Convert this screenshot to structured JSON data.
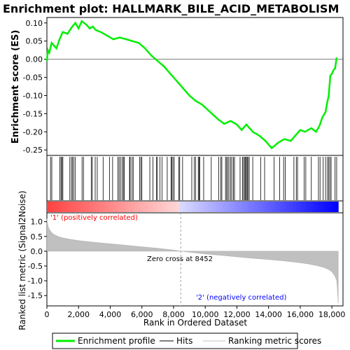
{
  "chart_data": {
    "type": "line",
    "title": "Enrichment plot: HALLMARK_BILE_ACID_METABOLISM",
    "x_axis": {
      "label": "Rank in Ordered Dataset",
      "range": [
        0,
        18700
      ],
      "ticks": [
        0,
        2000,
        4000,
        6000,
        8000,
        10000,
        12000,
        14000,
        16000,
        18000
      ],
      "tick_labels": [
        "0",
        "2,000",
        "4,000",
        "6,000",
        "8,000",
        "10,000",
        "12,000",
        "14,000",
        "16,000",
        "18,000"
      ]
    },
    "es_panel": {
      "ylabel": "Enrichment score (ES)",
      "ylim": [
        -0.265,
        0.115
      ],
      "ticks": [
        0.1,
        0.05,
        0.0,
        -0.05,
        -0.1,
        -0.15,
        -0.2,
        -0.25
      ],
      "tick_labels": [
        "0.10",
        "0.05",
        "0.00",
        "-0.05",
        "-0.10",
        "-0.15",
        "-0.20",
        "-0.25"
      ],
      "series_name": "Enrichment profile",
      "color": "#00ee00",
      "x": [
        0,
        60,
        150,
        300,
        600,
        800,
        1000,
        1300,
        1600,
        1800,
        2000,
        2200,
        2500,
        2700,
        2900,
        3100,
        3400,
        3800,
        4200,
        4600,
        5000,
        5400,
        5800,
        6200,
        6600,
        7000,
        7400,
        7800,
        8200,
        8600,
        9000,
        9400,
        9800,
        10300,
        10800,
        11200,
        11600,
        12000,
        12300,
        12600,
        13000,
        13400,
        13800,
        14200,
        14600,
        15000,
        15400,
        15700,
        16000,
        16300,
        16700,
        17000,
        17200,
        17400,
        17600,
        17700,
        17800,
        17900,
        18000,
        18100,
        18200,
        18300
      ],
      "y": [
        -0.005,
        0.025,
        0.018,
        0.045,
        0.03,
        0.055,
        0.075,
        0.07,
        0.09,
        0.1,
        0.085,
        0.105,
        0.095,
        0.085,
        0.09,
        0.08,
        0.075,
        0.065,
        0.055,
        0.06,
        0.055,
        0.05,
        0.045,
        0.03,
        0.01,
        -0.005,
        -0.02,
        -0.04,
        -0.06,
        -0.08,
        -0.1,
        -0.115,
        -0.125,
        -0.145,
        -0.165,
        -0.178,
        -0.17,
        -0.18,
        -0.195,
        -0.18,
        -0.2,
        -0.21,
        -0.225,
        -0.245,
        -0.23,
        -0.22,
        -0.225,
        -0.21,
        -0.195,
        -0.2,
        -0.19,
        -0.2,
        -0.185,
        -0.16,
        -0.145,
        -0.12,
        -0.1,
        -0.045,
        -0.04,
        -0.03,
        -0.025,
        0.005
      ]
    },
    "hits_panel": {
      "series_name": "Hits",
      "color": "#000000",
      "hit_ranks": [
        230,
        310,
        820,
        890,
        950,
        1010,
        1450,
        1550,
        1620,
        1700,
        1800,
        2220,
        2310,
        2800,
        2870,
        3050,
        3180,
        3550,
        3950,
        4150,
        4480,
        4560,
        4650,
        4760,
        4830,
        4880,
        5220,
        5260,
        5380,
        5450,
        5850,
        5930,
        6000,
        6500,
        6700,
        6920,
        6980,
        7140,
        7270,
        7600,
        7840,
        7880,
        7960,
        8040,
        8330,
        8390,
        8570,
        9150,
        9310,
        9390,
        9560,
        9610,
        9650,
        9900,
        10380,
        10850,
        10980,
        11050,
        11280,
        11350,
        11420,
        11500,
        11610,
        11680,
        11780,
        11850,
        12200,
        12350,
        12420,
        12500,
        12540,
        12600,
        12650,
        12700,
        12780,
        13000,
        13500,
        13750,
        14350,
        14700,
        14950,
        15050,
        15600,
        15750,
        15830,
        16250,
        16350,
        16700,
        17150,
        17250,
        17450,
        17600,
        17720,
        17800,
        17870,
        17950,
        18200,
        18300
      ]
    },
    "rank_bar": {
      "positive_color": "#ff0000",
      "negative_color": "#0000ff",
      "zero_cross": 8452
    },
    "metric_panel": {
      "ylabel": "Ranked list metric (Signal2Noise)",
      "ylim": [
        -1.85,
        1.3
      ],
      "ticks": [
        1.0,
        0.5,
        0.0,
        -0.5,
        -1.0,
        -1.5
      ],
      "tick_labels": [
        "1.0",
        "0.5",
        "0.0",
        "-0.5",
        "-1.0",
        "-1.5"
      ],
      "series_name": "Ranking metric scores",
      "color": "#c0c0c0",
      "x": [
        0,
        30,
        100,
        200,
        400,
        700,
        1000,
        1500,
        2000,
        3000,
        4000,
        5000,
        6000,
        7000,
        8000,
        8452,
        9000,
        10000,
        11000,
        12000,
        13000,
        14000,
        15000,
        16000,
        16500,
        17000,
        17500,
        17800,
        18000,
        18200,
        18300,
        18350,
        18400
      ],
      "y": [
        1.1,
        0.95,
        0.8,
        0.7,
        0.58,
        0.5,
        0.45,
        0.4,
        0.36,
        0.3,
        0.25,
        0.2,
        0.15,
        0.1,
        0.04,
        0.0,
        -0.03,
        -0.09,
        -0.14,
        -0.19,
        -0.24,
        -0.28,
        -0.33,
        -0.39,
        -0.43,
        -0.48,
        -0.55,
        -0.62,
        -0.7,
        -0.85,
        -1.0,
        -1.3,
        -1.75
      ],
      "annotations": {
        "positive": "'1' (positively correlated)",
        "negative": "'2' (negatively correlated)",
        "zero_cross": "Zero cross at 8452"
      }
    },
    "legend": {
      "position": "bottom",
      "items": [
        {
          "label": "Enrichment profile",
          "color": "#00ee00"
        },
        {
          "label": "Hits",
          "color": "#000000"
        },
        {
          "label": "Ranking metric scores",
          "color": "#c0c0c0"
        }
      ]
    },
    "grid": false
  }
}
